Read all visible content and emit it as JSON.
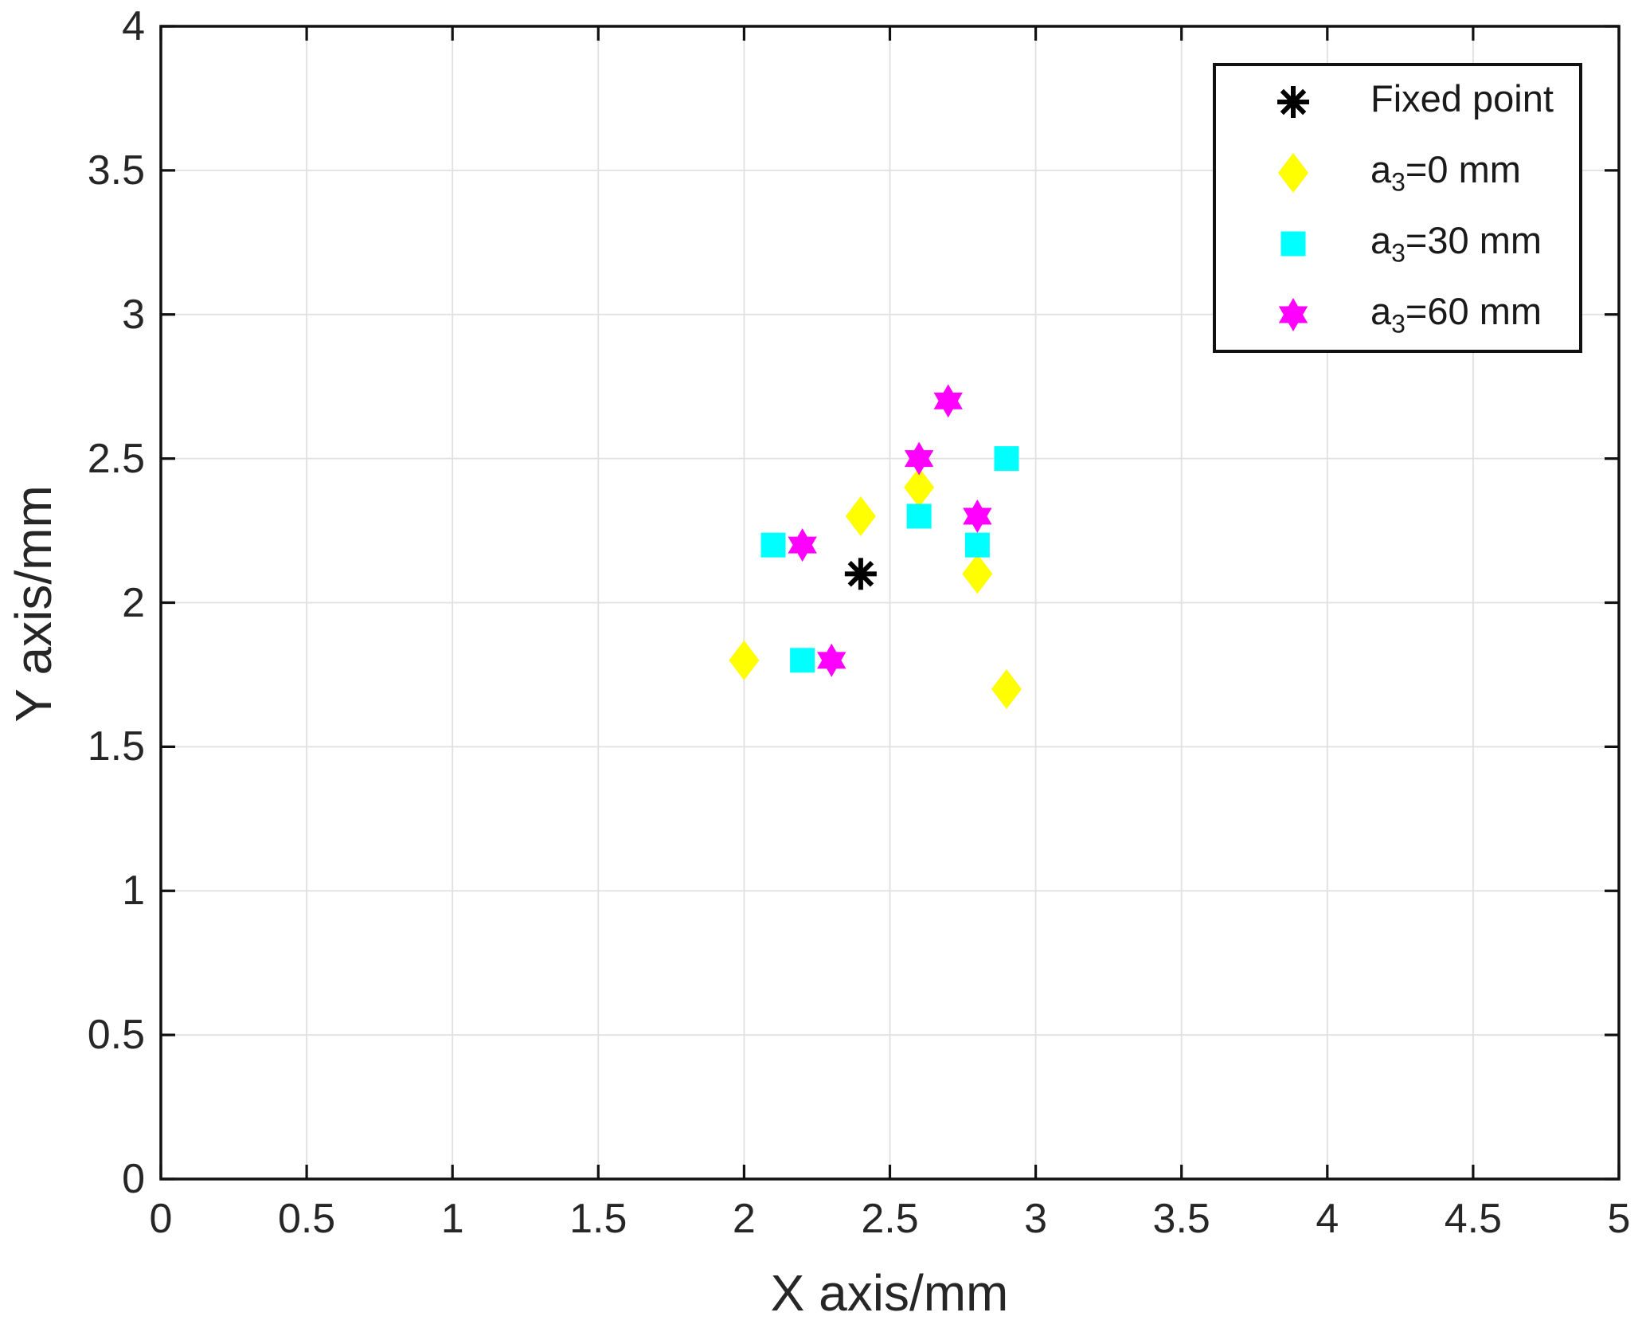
{
  "figure": {
    "background": "#ffffff",
    "text_color": "#262626",
    "axis_color": "#111111",
    "grid_color": "#e0e0e0"
  },
  "chart_data": {
    "type": "scatter",
    "title": "",
    "xlabel": "X axis/mm",
    "ylabel": "Y axis/mm",
    "xlim": [
      0,
      5
    ],
    "ylim": [
      0,
      4
    ],
    "xticks": [
      0,
      0.5,
      1,
      1.5,
      2,
      2.5,
      3,
      3.5,
      4,
      4.5,
      5
    ],
    "yticks": [
      0,
      0.5,
      1,
      1.5,
      2,
      2.5,
      3,
      3.5,
      4
    ],
    "grid": true,
    "legend_position": "top-right",
    "series": [
      {
        "name": "Fixed point",
        "marker": "asterisk",
        "color": "#000000",
        "points": [
          [
            2.4,
            2.1
          ]
        ]
      },
      {
        "name": "a_3=0 mm",
        "marker": "diamond",
        "color": "#ffff00",
        "points": [
          [
            2.0,
            1.8
          ],
          [
            2.4,
            2.3
          ],
          [
            2.6,
            2.4
          ],
          [
            2.8,
            2.1
          ],
          [
            2.9,
            1.7
          ]
        ]
      },
      {
        "name": "a_3=30 mm",
        "marker": "square",
        "color": "#00ffff",
        "points": [
          [
            2.1,
            2.2
          ],
          [
            2.2,
            1.8
          ],
          [
            2.6,
            2.3
          ],
          [
            2.8,
            2.2
          ],
          [
            2.9,
            2.5
          ]
        ]
      },
      {
        "name": "a_3=60 mm",
        "marker": "hexagram",
        "color": "#ff00ff",
        "points": [
          [
            2.2,
            2.2
          ],
          [
            2.3,
            1.8
          ],
          [
            2.6,
            2.5
          ],
          [
            2.7,
            2.7
          ],
          [
            2.8,
            2.3
          ]
        ]
      }
    ]
  },
  "legend": {
    "items": [
      {
        "pre": "Fixed point",
        "sub": "",
        "post": "",
        "marker": "asterisk",
        "color": "#000000"
      },
      {
        "pre": "a",
        "sub": "3",
        "post": "=0 mm",
        "marker": "diamond",
        "color": "#ffff00"
      },
      {
        "pre": "a",
        "sub": "3",
        "post": "=30 mm",
        "marker": "square",
        "color": "#00ffff"
      },
      {
        "pre": "a",
        "sub": "3",
        "post": "=60 mm",
        "marker": "hexagram",
        "color": "#ff00ff"
      }
    ]
  }
}
